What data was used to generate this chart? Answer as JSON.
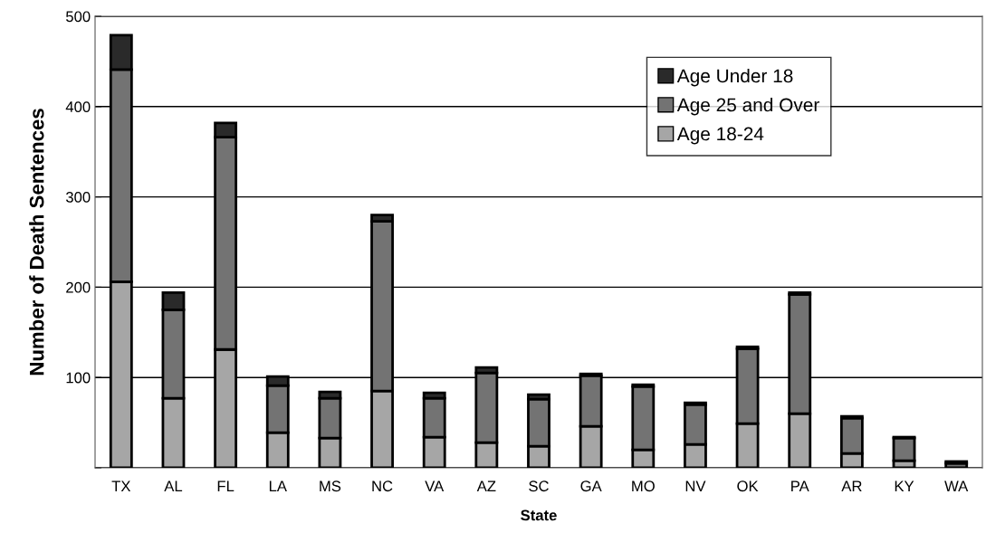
{
  "chart_data": {
    "type": "bar",
    "stacked": true,
    "xlabel": "State",
    "ylabel": "Number of Death Sentences",
    "categories": [
      "TX",
      "AL",
      "FL",
      "LA",
      "MS",
      "NC",
      "VA",
      "AZ",
      "SC",
      "GA",
      "MO",
      "NV",
      "OK",
      "PA",
      "AR",
      "KY",
      "WA"
    ],
    "series": [
      {
        "name": "Age 18-24",
        "color": "#a6a6a6",
        "values": [
          206,
          77,
          131,
          39,
          33,
          85,
          34,
          28,
          24,
          46,
          20,
          26,
          49,
          60,
          16,
          8,
          0
        ]
      },
      {
        "name": "Age 25 and Over",
        "color": "#737373",
        "values": [
          235,
          98,
          235,
          52,
          44,
          188,
          43,
          77,
          52,
          56,
          70,
          44,
          83,
          132,
          39,
          25,
          5
        ]
      },
      {
        "name": "Age Under 18",
        "color": "#2a2a2a",
        "values": [
          38,
          19,
          16,
          10,
          7,
          7,
          6,
          6,
          5,
          2,
          2,
          2,
          2,
          2,
          2,
          1,
          2
        ]
      }
    ],
    "ylim": [
      0,
      500
    ],
    "yticks": [
      {
        "value": 0,
        "label": null
      },
      100,
      200,
      300,
      400,
      500
    ],
    "grid": "y",
    "legend": "top right"
  }
}
